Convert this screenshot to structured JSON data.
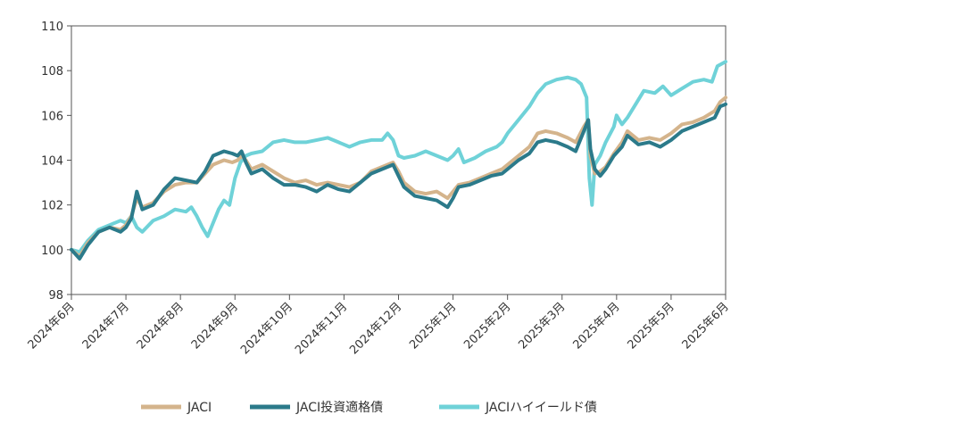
{
  "chart_data": {
    "type": "line",
    "ylim": [
      98,
      110
    ],
    "yticks": [
      98,
      100,
      102,
      104,
      106,
      108,
      110
    ],
    "xlim": [
      0,
      12
    ],
    "x_tick_labels": [
      "2024年6月",
      "2024年7月",
      "2024年8月",
      "2024年9月",
      "2024年10月",
      "2024年11月",
      "2024年12月",
      "2025年1月",
      "2025年2月",
      "2025年3月",
      "2025年4月",
      "2025年5月",
      "2025年6月"
    ],
    "grid": false,
    "legend_position": "bottom",
    "series": [
      {
        "name": "JACI",
        "color": "#d4b48c",
        "points": [
          [
            0.0,
            100.0
          ],
          [
            0.15,
            99.7
          ],
          [
            0.3,
            100.3
          ],
          [
            0.5,
            100.8
          ],
          [
            0.7,
            101.0
          ],
          [
            0.9,
            100.9
          ],
          [
            1.0,
            101.1
          ],
          [
            1.1,
            101.5
          ],
          [
            1.2,
            102.3
          ],
          [
            1.3,
            101.9
          ],
          [
            1.5,
            102.1
          ],
          [
            1.7,
            102.6
          ],
          [
            1.9,
            102.9
          ],
          [
            2.1,
            103.0
          ],
          [
            2.3,
            103.0
          ],
          [
            2.45,
            103.4
          ],
          [
            2.6,
            103.8
          ],
          [
            2.8,
            104.0
          ],
          [
            2.95,
            103.9
          ],
          [
            3.05,
            104.0
          ],
          [
            3.12,
            104.2
          ],
          [
            3.2,
            104.0
          ],
          [
            3.3,
            103.6
          ],
          [
            3.5,
            103.8
          ],
          [
            3.7,
            103.5
          ],
          [
            3.9,
            103.2
          ],
          [
            4.1,
            103.0
          ],
          [
            4.3,
            103.1
          ],
          [
            4.5,
            102.9
          ],
          [
            4.7,
            103.0
          ],
          [
            4.9,
            102.9
          ],
          [
            5.1,
            102.8
          ],
          [
            5.3,
            103.0
          ],
          [
            5.5,
            103.5
          ],
          [
            5.7,
            103.7
          ],
          [
            5.9,
            103.9
          ],
          [
            6.0,
            103.5
          ],
          [
            6.1,
            103.0
          ],
          [
            6.3,
            102.6
          ],
          [
            6.5,
            102.5
          ],
          [
            6.7,
            102.6
          ],
          [
            6.9,
            102.3
          ],
          [
            7.0,
            102.6
          ],
          [
            7.1,
            102.9
          ],
          [
            7.3,
            103.0
          ],
          [
            7.5,
            103.2
          ],
          [
            7.7,
            103.4
          ],
          [
            7.9,
            103.6
          ],
          [
            8.0,
            103.8
          ],
          [
            8.2,
            104.2
          ],
          [
            8.4,
            104.6
          ],
          [
            8.55,
            105.2
          ],
          [
            8.7,
            105.3
          ],
          [
            8.9,
            105.2
          ],
          [
            9.1,
            105.0
          ],
          [
            9.25,
            104.8
          ],
          [
            9.4,
            105.5
          ],
          [
            9.48,
            105.8
          ],
          [
            9.52,
            104.2
          ],
          [
            9.6,
            103.4
          ],
          [
            9.7,
            103.5
          ],
          [
            9.8,
            103.7
          ],
          [
            9.95,
            104.3
          ],
          [
            10.1,
            104.8
          ],
          [
            10.2,
            105.3
          ],
          [
            10.4,
            104.9
          ],
          [
            10.6,
            105.0
          ],
          [
            10.8,
            104.9
          ],
          [
            11.0,
            105.2
          ],
          [
            11.2,
            105.6
          ],
          [
            11.4,
            105.7
          ],
          [
            11.6,
            105.9
          ],
          [
            11.8,
            106.2
          ],
          [
            11.9,
            106.6
          ],
          [
            12.0,
            106.8
          ]
        ]
      },
      {
        "name": "JACI投資適格債",
        "color": "#2b7a8a",
        "points": [
          [
            0.0,
            100.0
          ],
          [
            0.15,
            99.6
          ],
          [
            0.3,
            100.2
          ],
          [
            0.5,
            100.8
          ],
          [
            0.7,
            101.0
          ],
          [
            0.9,
            100.8
          ],
          [
            1.0,
            101.0
          ],
          [
            1.1,
            101.4
          ],
          [
            1.2,
            102.6
          ],
          [
            1.3,
            101.8
          ],
          [
            1.5,
            102.0
          ],
          [
            1.7,
            102.7
          ],
          [
            1.9,
            103.2
          ],
          [
            2.1,
            103.1
          ],
          [
            2.3,
            103.0
          ],
          [
            2.45,
            103.5
          ],
          [
            2.6,
            104.2
          ],
          [
            2.8,
            104.4
          ],
          [
            2.95,
            104.3
          ],
          [
            3.05,
            104.2
          ],
          [
            3.12,
            104.4
          ],
          [
            3.2,
            103.9
          ],
          [
            3.3,
            103.4
          ],
          [
            3.5,
            103.6
          ],
          [
            3.7,
            103.2
          ],
          [
            3.9,
            102.9
          ],
          [
            4.1,
            102.9
          ],
          [
            4.3,
            102.8
          ],
          [
            4.5,
            102.6
          ],
          [
            4.7,
            102.9
          ],
          [
            4.9,
            102.7
          ],
          [
            5.1,
            102.6
          ],
          [
            5.3,
            103.0
          ],
          [
            5.5,
            103.4
          ],
          [
            5.7,
            103.6
          ],
          [
            5.9,
            103.8
          ],
          [
            6.0,
            103.3
          ],
          [
            6.1,
            102.8
          ],
          [
            6.3,
            102.4
          ],
          [
            6.5,
            102.3
          ],
          [
            6.7,
            102.2
          ],
          [
            6.9,
            101.9
          ],
          [
            7.0,
            102.3
          ],
          [
            7.1,
            102.8
          ],
          [
            7.3,
            102.9
          ],
          [
            7.5,
            103.1
          ],
          [
            7.7,
            103.3
          ],
          [
            7.9,
            103.4
          ],
          [
            8.0,
            103.6
          ],
          [
            8.2,
            104.0
          ],
          [
            8.4,
            104.3
          ],
          [
            8.55,
            104.8
          ],
          [
            8.7,
            104.9
          ],
          [
            8.9,
            104.8
          ],
          [
            9.1,
            104.6
          ],
          [
            9.25,
            104.4
          ],
          [
            9.4,
            105.3
          ],
          [
            9.48,
            105.8
          ],
          [
            9.52,
            104.5
          ],
          [
            9.6,
            103.6
          ],
          [
            9.7,
            103.3
          ],
          [
            9.8,
            103.6
          ],
          [
            9.95,
            104.2
          ],
          [
            10.1,
            104.6
          ],
          [
            10.2,
            105.1
          ],
          [
            10.4,
            104.7
          ],
          [
            10.6,
            104.8
          ],
          [
            10.8,
            104.6
          ],
          [
            11.0,
            104.9
          ],
          [
            11.2,
            105.3
          ],
          [
            11.4,
            105.5
          ],
          [
            11.6,
            105.7
          ],
          [
            11.8,
            105.9
          ],
          [
            11.9,
            106.4
          ],
          [
            12.0,
            106.5
          ]
        ]
      },
      {
        "name": "JACIハイイールド債",
        "color": "#6fd2d8",
        "points": [
          [
            0.0,
            100.0
          ],
          [
            0.15,
            99.9
          ],
          [
            0.3,
            100.4
          ],
          [
            0.5,
            100.9
          ],
          [
            0.7,
            101.1
          ],
          [
            0.9,
            101.3
          ],
          [
            1.0,
            101.2
          ],
          [
            1.1,
            101.5
          ],
          [
            1.2,
            101.0
          ],
          [
            1.3,
            100.8
          ],
          [
            1.5,
            101.3
          ],
          [
            1.7,
            101.5
          ],
          [
            1.9,
            101.8
          ],
          [
            2.1,
            101.7
          ],
          [
            2.2,
            101.9
          ],
          [
            2.3,
            101.5
          ],
          [
            2.4,
            101.0
          ],
          [
            2.5,
            100.6
          ],
          [
            2.6,
            101.2
          ],
          [
            2.7,
            101.8
          ],
          [
            2.8,
            102.2
          ],
          [
            2.9,
            102.0
          ],
          [
            3.0,
            103.2
          ],
          [
            3.1,
            103.9
          ],
          [
            3.2,
            104.2
          ],
          [
            3.3,
            104.3
          ],
          [
            3.5,
            104.4
          ],
          [
            3.7,
            104.8
          ],
          [
            3.9,
            104.9
          ],
          [
            4.1,
            104.8
          ],
          [
            4.3,
            104.8
          ],
          [
            4.5,
            104.9
          ],
          [
            4.7,
            105.0
          ],
          [
            4.9,
            104.8
          ],
          [
            5.1,
            104.6
          ],
          [
            5.3,
            104.8
          ],
          [
            5.5,
            104.9
          ],
          [
            5.7,
            104.9
          ],
          [
            5.8,
            105.2
          ],
          [
            5.9,
            104.9
          ],
          [
            6.0,
            104.2
          ],
          [
            6.1,
            104.1
          ],
          [
            6.3,
            104.2
          ],
          [
            6.5,
            104.4
          ],
          [
            6.7,
            104.2
          ],
          [
            6.9,
            104.0
          ],
          [
            7.0,
            104.2
          ],
          [
            7.1,
            104.5
          ],
          [
            7.2,
            103.9
          ],
          [
            7.4,
            104.1
          ],
          [
            7.6,
            104.4
          ],
          [
            7.8,
            104.6
          ],
          [
            7.9,
            104.8
          ],
          [
            8.0,
            105.2
          ],
          [
            8.2,
            105.8
          ],
          [
            8.4,
            106.4
          ],
          [
            8.55,
            107.0
          ],
          [
            8.7,
            107.4
          ],
          [
            8.9,
            107.6
          ],
          [
            9.1,
            107.7
          ],
          [
            9.25,
            107.6
          ],
          [
            9.35,
            107.4
          ],
          [
            9.45,
            106.8
          ],
          [
            9.5,
            103.2
          ],
          [
            9.55,
            102.0
          ],
          [
            9.6,
            103.8
          ],
          [
            9.7,
            104.2
          ],
          [
            9.8,
            104.8
          ],
          [
            9.95,
            105.5
          ],
          [
            10.0,
            106.0
          ],
          [
            10.1,
            105.6
          ],
          [
            10.2,
            105.9
          ],
          [
            10.35,
            106.5
          ],
          [
            10.5,
            107.1
          ],
          [
            10.7,
            107.0
          ],
          [
            10.85,
            107.3
          ],
          [
            11.0,
            106.9
          ],
          [
            11.2,
            107.2
          ],
          [
            11.4,
            107.5
          ],
          [
            11.6,
            107.6
          ],
          [
            11.75,
            107.5
          ],
          [
            11.85,
            108.2
          ],
          [
            12.0,
            108.4
          ]
        ]
      }
    ]
  }
}
